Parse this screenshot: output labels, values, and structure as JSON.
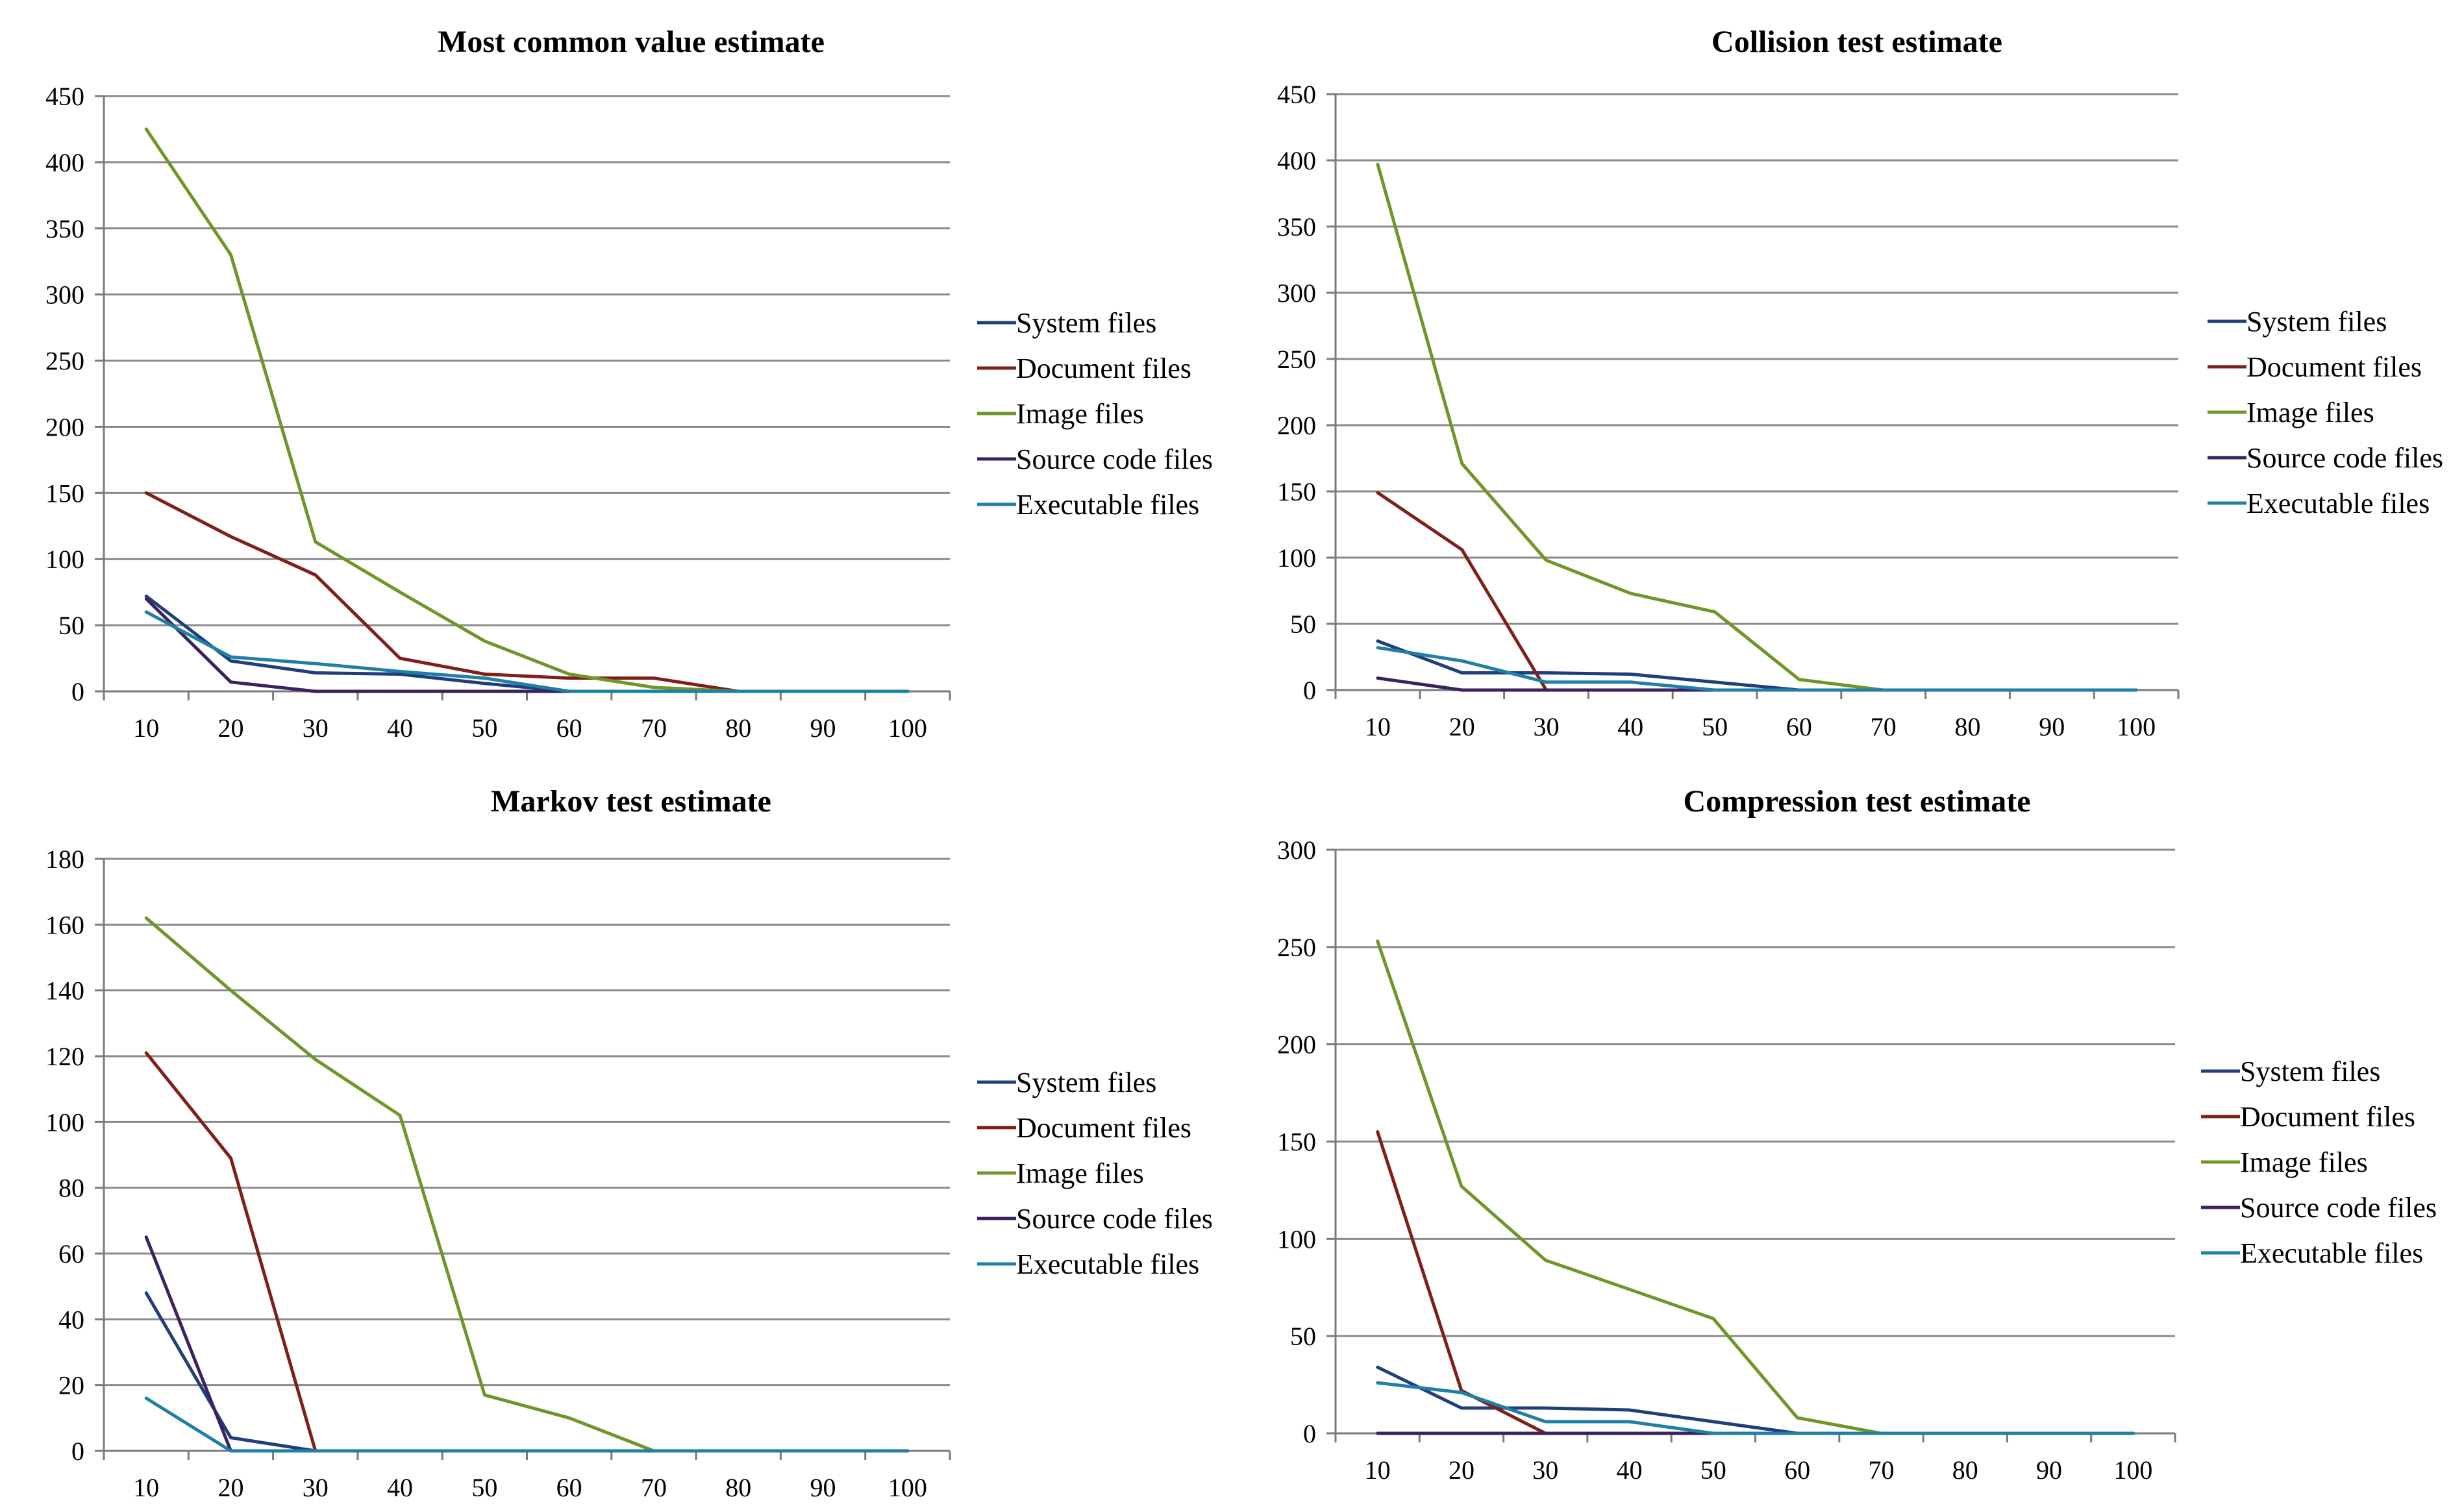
{
  "colors": {
    "System files": "#1f3f7a",
    "Document files": "#7f1f1a",
    "Image files": "#6f9628",
    "Source code files": "#3a2260",
    "Executable files": "#1f7fa5",
    "gridline": "#8a8a8a",
    "axis": "#7a7a7a"
  },
  "chart_data": [
    {
      "type": "line",
      "title": "Most common value estimate",
      "xlabel": "",
      "ylabel": "",
      "categories": [
        "10",
        "20",
        "30",
        "40",
        "50",
        "60",
        "70",
        "80",
        "90",
        "100"
      ],
      "ylim": [
        0,
        450
      ],
      "yticks": [
        0,
        50,
        100,
        150,
        200,
        250,
        300,
        350,
        400,
        450
      ],
      "legend": "right",
      "grid": true,
      "series": [
        {
          "name": "System files",
          "values": [
            72,
            23,
            14,
            13,
            6,
            0,
            0,
            0,
            0,
            0
          ]
        },
        {
          "name": "Document files",
          "values": [
            150,
            117,
            88,
            25,
            13,
            10,
            10,
            0,
            0,
            0
          ]
        },
        {
          "name": "Image files",
          "values": [
            425,
            330,
            113,
            75,
            38,
            13,
            3,
            0,
            0,
            0
          ]
        },
        {
          "name": "Source code files",
          "values": [
            70,
            7,
            0,
            0,
            0,
            0,
            0,
            0,
            0,
            0
          ]
        },
        {
          "name": "Executable files",
          "values": [
            60,
            26,
            21,
            15,
            10,
            0,
            0,
            0,
            0,
            0
          ]
        }
      ]
    },
    {
      "type": "line",
      "title": "Collision test estimate",
      "xlabel": "",
      "ylabel": "",
      "categories": [
        "10",
        "20",
        "30",
        "40",
        "50",
        "60",
        "70",
        "80",
        "90",
        "100"
      ],
      "ylim": [
        0,
        450
      ],
      "yticks": [
        0,
        50,
        100,
        150,
        200,
        250,
        300,
        350,
        400,
        450
      ],
      "legend": "right",
      "grid": true,
      "series": [
        {
          "name": "System files",
          "values": [
            37,
            13,
            13,
            12,
            6,
            0,
            0,
            0,
            0,
            0
          ]
        },
        {
          "name": "Document files",
          "values": [
            149,
            106,
            0,
            0,
            0,
            0,
            0,
            0,
            0,
            0
          ]
        },
        {
          "name": "Image files",
          "values": [
            397,
            171,
            98,
            73,
            59,
            8,
            0,
            0,
            0,
            0
          ]
        },
        {
          "name": "Source code files",
          "values": [
            9,
            0,
            0,
            0,
            0,
            0,
            0,
            0,
            0,
            0
          ]
        },
        {
          "name": "Executable files",
          "values": [
            32,
            22,
            6,
            6,
            0,
            0,
            0,
            0,
            0,
            0
          ]
        }
      ]
    },
    {
      "type": "line",
      "title": "Markov test estimate",
      "xlabel": "",
      "ylabel": "",
      "categories": [
        "10",
        "20",
        "30",
        "40",
        "50",
        "60",
        "70",
        "80",
        "90",
        "100"
      ],
      "ylim": [
        0,
        180
      ],
      "yticks": [
        0,
        20,
        40,
        60,
        80,
        100,
        120,
        140,
        160,
        180
      ],
      "legend": "right",
      "grid": true,
      "series": [
        {
          "name": "System files",
          "values": [
            48,
            4,
            0,
            0,
            0,
            0,
            0,
            0,
            0,
            0
          ]
        },
        {
          "name": "Document files",
          "values": [
            121,
            89,
            0,
            0,
            0,
            0,
            0,
            0,
            0,
            0
          ]
        },
        {
          "name": "Image files",
          "values": [
            162,
            140,
            119,
            102,
            17,
            10,
            0,
            0,
            0,
            0
          ]
        },
        {
          "name": "Source code files",
          "values": [
            65,
            0,
            0,
            0,
            0,
            0,
            0,
            0,
            0,
            0
          ]
        },
        {
          "name": "Executable files",
          "values": [
            16,
            0,
            0,
            0,
            0,
            0,
            0,
            0,
            0,
            0
          ]
        }
      ]
    },
    {
      "type": "line",
      "title": "Compression test estimate",
      "xlabel": "",
      "ylabel": "",
      "categories": [
        "10",
        "20",
        "30",
        "40",
        "50",
        "60",
        "70",
        "80",
        "90",
        "100"
      ],
      "ylim": [
        0,
        300
      ],
      "yticks": [
        0,
        50,
        100,
        150,
        200,
        250,
        300
      ],
      "legend": "right",
      "grid": true,
      "series": [
        {
          "name": "System files",
          "values": [
            34,
            13,
            13,
            12,
            6,
            0,
            0,
            0,
            0,
            0
          ]
        },
        {
          "name": "Document files",
          "values": [
            155,
            22,
            0,
            0,
            0,
            0,
            0,
            0,
            0,
            0
          ]
        },
        {
          "name": "Image files",
          "values": [
            253,
            127,
            89,
            74,
            59,
            8,
            0,
            0,
            0,
            0
          ]
        },
        {
          "name": "Source code files",
          "values": [
            0,
            0,
            0,
            0,
            0,
            0,
            0,
            0,
            0,
            0
          ]
        },
        {
          "name": "Executable files",
          "values": [
            26,
            21,
            6,
            6,
            0,
            0,
            0,
            0,
            0,
            0
          ]
        }
      ]
    }
  ]
}
